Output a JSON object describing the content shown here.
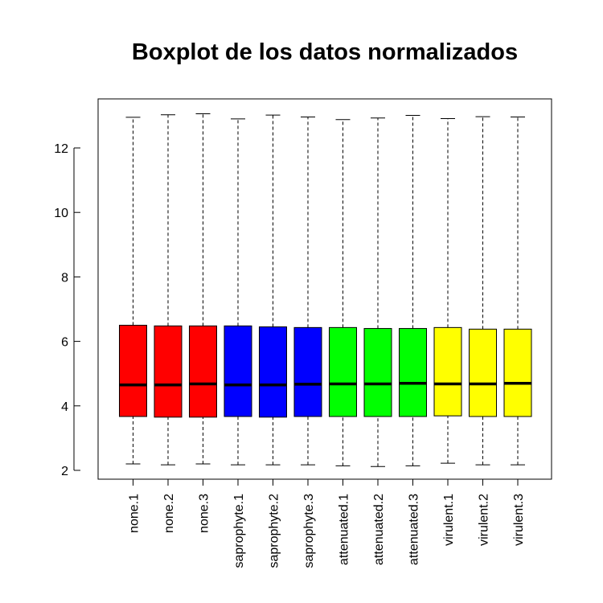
{
  "chart_data": {
    "type": "boxplot",
    "title": "Boxplot de los datos normalizados",
    "xlabel": "",
    "ylabel": "",
    "ylim": [
      1.8,
      13.3
    ],
    "yticks": [
      2,
      4,
      6,
      8,
      10,
      12
    ],
    "ytick_labels": [
      "2",
      "4",
      "6",
      "8",
      "10",
      "12"
    ],
    "grid": false,
    "legend": "none",
    "categories": [
      "none.1",
      "none.2",
      "none.3",
      "saprophyte.1",
      "saprophyte.2",
      "saprophyte.3",
      "attenuated.1",
      "attenuated.2",
      "attenuated.3",
      "virulent.1",
      "virulent.2",
      "virulent.3"
    ],
    "box_colors": [
      "#ff0000",
      "#ff0000",
      "#ff0000",
      "#0000ff",
      "#0000ff",
      "#0000ff",
      "#00ff00",
      "#00ff00",
      "#00ff00",
      "#ffff00",
      "#ffff00",
      "#ffff00"
    ],
    "stats": [
      {
        "min": 2.2,
        "q1": 3.67,
        "median": 4.65,
        "q3": 6.5,
        "max": 12.95
      },
      {
        "min": 2.17,
        "q1": 3.65,
        "median": 4.65,
        "q3": 6.48,
        "max": 13.03
      },
      {
        "min": 2.2,
        "q1": 3.65,
        "median": 4.68,
        "q3": 6.48,
        "max": 13.06
      },
      {
        "min": 2.17,
        "q1": 3.67,
        "median": 4.65,
        "q3": 6.48,
        "max": 12.9
      },
      {
        "min": 2.17,
        "q1": 3.65,
        "median": 4.65,
        "q3": 6.45,
        "max": 13.02
      },
      {
        "min": 2.17,
        "q1": 3.67,
        "median": 4.67,
        "q3": 6.43,
        "max": 12.96
      },
      {
        "min": 2.14,
        "q1": 3.67,
        "median": 4.68,
        "q3": 6.43,
        "max": 12.88
      },
      {
        "min": 2.12,
        "q1": 3.67,
        "median": 4.68,
        "q3": 6.4,
        "max": 12.93
      },
      {
        "min": 2.14,
        "q1": 3.67,
        "median": 4.7,
        "q3": 6.4,
        "max": 13.01
      },
      {
        "min": 2.22,
        "q1": 3.69,
        "median": 4.68,
        "q3": 6.43,
        "max": 12.91
      },
      {
        "min": 2.17,
        "q1": 3.67,
        "median": 4.68,
        "q3": 6.38,
        "max": 12.97
      },
      {
        "min": 2.17,
        "q1": 3.67,
        "median": 4.7,
        "q3": 6.38,
        "max": 12.96
      }
    ]
  }
}
